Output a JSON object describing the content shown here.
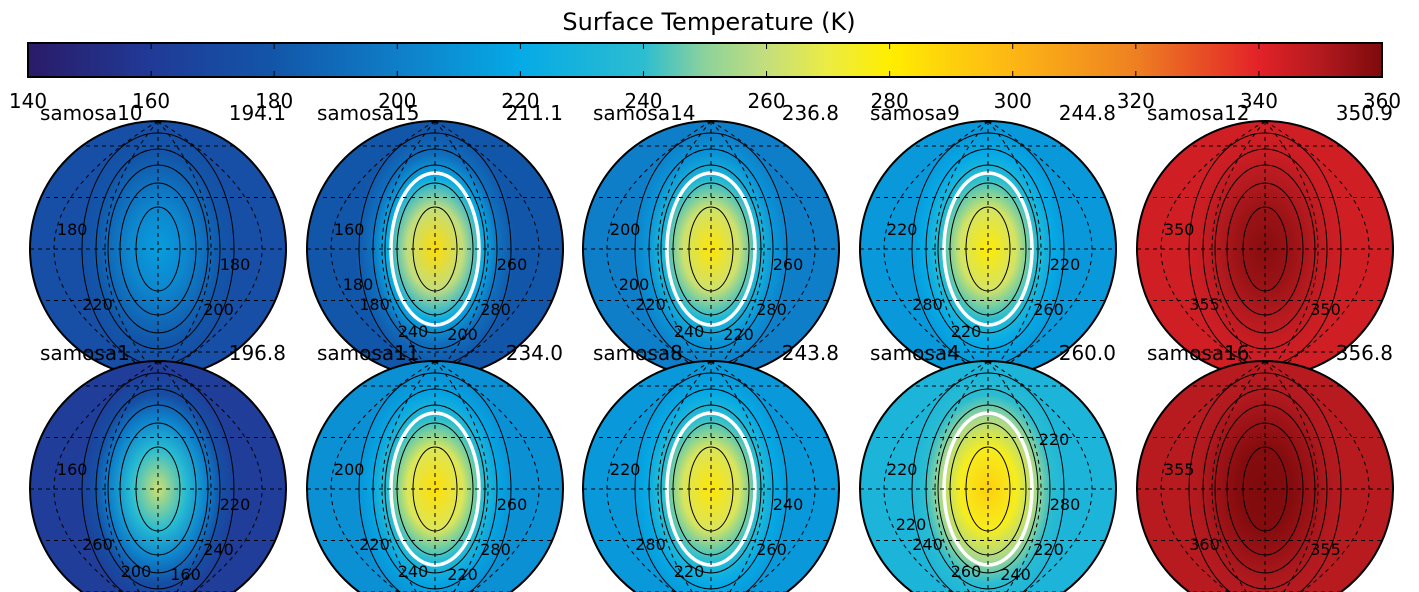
{
  "chart_data": {
    "type": "heatmap",
    "title": "Surface Temperature (K)",
    "colorbar": {
      "min": 140,
      "max": 360,
      "ticks": [
        140,
        160,
        180,
        200,
        220,
        240,
        260,
        280,
        300,
        320,
        340,
        360
      ],
      "tick_labels": [
        "140",
        "160",
        "180",
        "200",
        "220",
        "240",
        "260",
        "280",
        "300",
        "320",
        "340",
        "360"
      ],
      "colormap": [
        [
          140,
          "#2a1b68"
        ],
        [
          160,
          "#203a97"
        ],
        [
          180,
          "#1256a9"
        ],
        [
          200,
          "#0f7ec8"
        ],
        [
          220,
          "#05aae6"
        ],
        [
          240,
          "#2cbdd0"
        ],
        [
          250,
          "#8dd29b"
        ],
        [
          260,
          "#c4de7c"
        ],
        [
          270,
          "#ecec42"
        ],
        [
          280,
          "#ffee00"
        ],
        [
          290,
          "#fed00c"
        ],
        [
          300,
          "#fdb614"
        ],
        [
          320,
          "#ee8022"
        ],
        [
          340,
          "#e32228"
        ],
        [
          350,
          "#b21a1f"
        ],
        [
          360,
          "#7e0a0c"
        ]
      ]
    },
    "panels": [
      {
        "name": "samosa10",
        "value": "194.1",
        "bg": 175,
        "center": 214,
        "hot": false,
        "contours": [
          "180",
          "220",
          "200",
          "180"
        ]
      },
      {
        "name": "samosa15",
        "value": "211.1",
        "bg": 180,
        "center": 286,
        "hot": true,
        "contours": [
          "160",
          "180",
          "280",
          "260",
          "240",
          "200",
          "180"
        ]
      },
      {
        "name": "samosa14",
        "value": "236.8",
        "bg": 200,
        "center": 283,
        "hot": true,
        "contours": [
          "200",
          "220",
          "280",
          "260",
          "240",
          "220",
          "200"
        ]
      },
      {
        "name": "samosa9",
        "value": "244.8",
        "bg": 212,
        "center": 281,
        "hot": true,
        "contours": [
          "220",
          "280",
          "260",
          "220",
          "220"
        ]
      },
      {
        "name": "samosa12",
        "value": "350.9",
        "bg": 344,
        "center": 358,
        "hot": false,
        "contours": [
          "350",
          "355",
          "350"
        ]
      },
      {
        "name": "samosa1",
        "value": "196.8",
        "bg": 162,
        "center": 262,
        "hot": false,
        "contours": [
          "160",
          "260",
          "240",
          "220",
          "200",
          "160"
        ]
      },
      {
        "name": "samosa11",
        "value": "234.0",
        "bg": 208,
        "center": 285,
        "hot": true,
        "contours": [
          "200",
          "220",
          "280",
          "260",
          "240",
          "220"
        ]
      },
      {
        "name": "samosa8",
        "value": "243.8",
        "bg": 212,
        "center": 283,
        "hot": true,
        "contours": [
          "220",
          "280",
          "260",
          "240",
          "220"
        ]
      },
      {
        "name": "samosa4",
        "value": "260.0",
        "bg": 232,
        "center": 290,
        "hot": true,
        "contours": [
          "220",
          "240",
          "220",
          "280",
          "260",
          "240",
          "220",
          "220"
        ]
      },
      {
        "name": "samosa16",
        "value": "356.8",
        "bg": 349,
        "center": 362,
        "hot": false,
        "contours": [
          "355",
          "360",
          "355"
        ]
      }
    ]
  }
}
